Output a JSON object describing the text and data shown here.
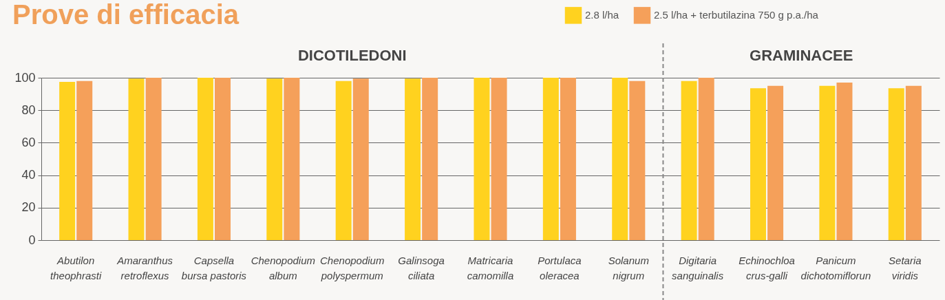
{
  "chart_data": {
    "type": "bar",
    "title": "Prove di efficacia",
    "categories": [
      "Abutilon theophrasti",
      "Amaranthus retroflexus",
      "Capsella bursa pastoris",
      "Chenopodium album",
      "Chenopodium polyspermum",
      "Galinsoga ciliata",
      "Matricaria camomilla",
      "Portulaca oleracea",
      "Solanum nigrum",
      "Digitaria sanguinalis",
      "Echinochloa crus-galli",
      "Panicum dichotomiflorun",
      "Setaria viridis"
    ],
    "series": [
      {
        "name": "2.8 l/ha",
        "color": "#ffd21f",
        "values": [
          97.5,
          99.5,
          100,
          99.5,
          98,
          99.5,
          100,
          100,
          100,
          98,
          93.5,
          95,
          93.5
        ]
      },
      {
        "name": "2.5 l/ha + terbutilazina  750 g p.a./ha",
        "color": "#f5a05a",
        "values": [
          98,
          100,
          100,
          100,
          99.5,
          100,
          100,
          100,
          98,
          100,
          95,
          97,
          95
        ]
      }
    ],
    "ylim": [
      0,
      100
    ],
    "yticks": [
      0,
      20,
      40,
      60,
      80,
      100
    ],
    "grid": "y",
    "legend": "top right",
    "annotations": [
      "DICOTILEDONI",
      "GRAMINACEE"
    ],
    "ref_lines": [
      {
        "axis": "x",
        "value": "Digitaria sanguinalis",
        "color": "#888888",
        "line_style": "dashed"
      }
    ]
  }
}
